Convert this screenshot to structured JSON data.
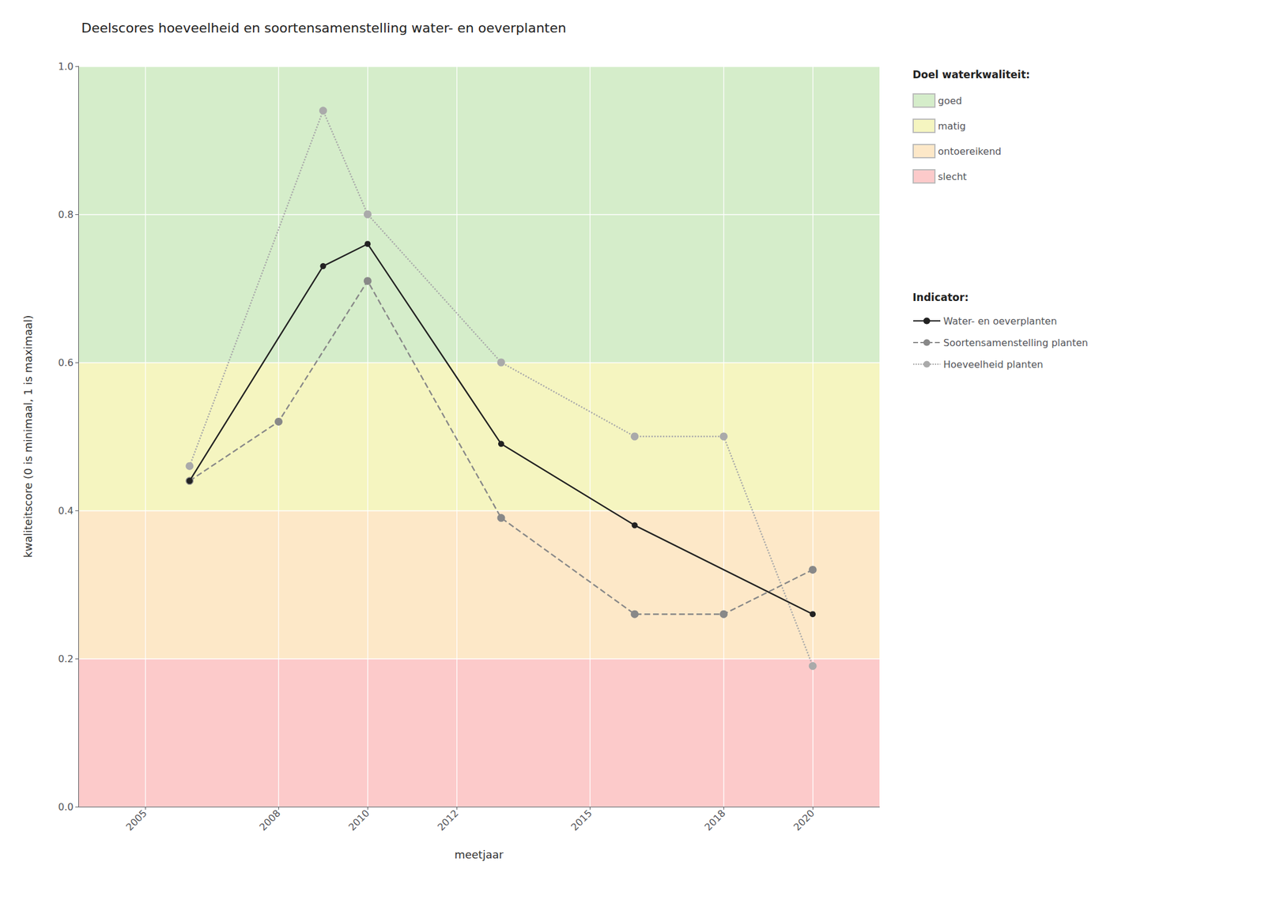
{
  "chart_data": {
    "type": "line",
    "title": "Deelscores hoeveelheid en soortensamenstelling water- en oeverplanten",
    "x_label": "meetjaar",
    "y_label": "kwaliteitscore (0 is minimaal, 1 is maximaal)",
    "xlim": [
      2003.5,
      2021.5
    ],
    "ylim": [
      0.0,
      1.0
    ],
    "xticks": [
      2005,
      2008,
      2010,
      2012,
      2015,
      2018,
      2020
    ],
    "yticks": [
      {
        "value": 0.0,
        "label": "0.0"
      },
      0.2,
      0.4,
      0.6,
      0.8,
      {
        "value": 1.0,
        "label": "1.0"
      }
    ],
    "grid": true,
    "legend": "right",
    "band_legend_title": "Doel waterkwaliteit:",
    "series_legend_title": "Indicator:",
    "bands": [
      {
        "name": "goed",
        "color": "#d5edca",
        "from": 0.6,
        "to": 1.0
      },
      {
        "name": "matig",
        "color": "#f5f5c0",
        "from": 0.4,
        "to": 0.6
      },
      {
        "name": "ontoereikend",
        "color": "#fde8c8",
        "from": 0.2,
        "to": 0.4
      },
      {
        "name": "slecht",
        "color": "#fccaca",
        "from": 0.0,
        "to": 0.2
      }
    ],
    "series": [
      {
        "name": "Water- en oeverplanten",
        "color": "#222222",
        "line_style": "solid",
        "marker": "circle",
        "x": [
          2006,
          2009,
          2010,
          2013,
          2016,
          2020
        ],
        "values": [
          0.44,
          0.73,
          0.76,
          0.49,
          0.38,
          0.26
        ]
      },
      {
        "name": "Soortensamenstelling planten",
        "color": "#888888",
        "line_style": "dashed",
        "marker": "circle",
        "x": [
          2006,
          2008,
          2010,
          2013,
          2016,
          2018,
          2020
        ],
        "values": [
          0.44,
          0.52,
          0.71,
          0.39,
          0.26,
          0.26,
          0.32
        ]
      },
      {
        "name": "Hoeveelheid planten",
        "color": "#aaaaaa",
        "line_style": "dotted",
        "marker": "circle",
        "x": [
          2006,
          2009,
          2010,
          2013,
          2016,
          2018,
          2020
        ],
        "values": [
          0.46,
          0.94,
          0.8,
          0.6,
          0.5,
          0.5,
          0.19
        ]
      }
    ]
  }
}
